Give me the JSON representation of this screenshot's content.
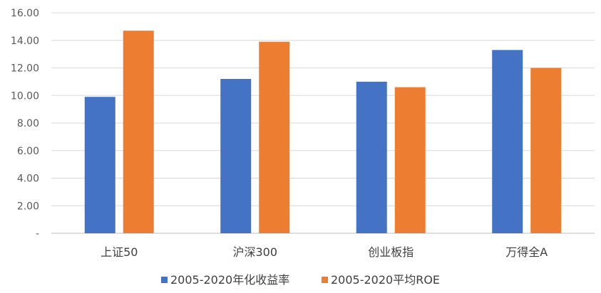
{
  "chart_data": {
    "type": "bar",
    "categories": [
      "上证50",
      "沪深300",
      "创业板指",
      "万得全A"
    ],
    "series": [
      {
        "name": "2005-2020年化收益率",
        "color": "#4472C4",
        "values": [
          9.9,
          11.2,
          11.0,
          13.3
        ]
      },
      {
        "name": "2005-2020平均ROE",
        "color": "#ED7D31",
        "values": [
          14.7,
          13.9,
          10.6,
          12.0
        ]
      }
    ],
    "ylim": [
      0,
      16
    ],
    "yticks": [
      0,
      2,
      4,
      6,
      8,
      10,
      12,
      14,
      16
    ],
    "ytick_labels": [
      "-",
      "2.00",
      "4.00",
      "6.00",
      "8.00",
      "10.00",
      "12.00",
      "14.00",
      "16.00"
    ],
    "grid": true,
    "legend": "bottom",
    "gridline_color": "#D9D9D9",
    "axis_color": "#BFBFBF"
  }
}
